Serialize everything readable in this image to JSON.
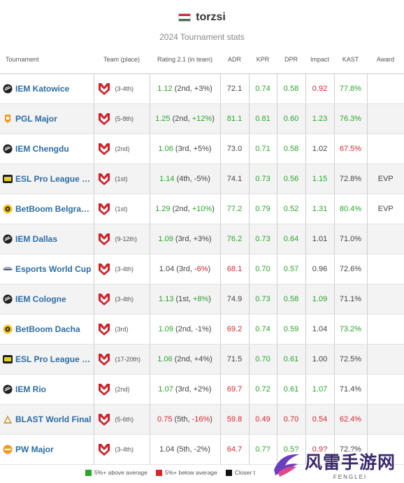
{
  "header": {
    "player": "torzsi",
    "flag_icon": "hungary-flag-icon",
    "subtitle": "2024 Tournament stats"
  },
  "table": {
    "columns": [
      "Tournament",
      "Team (place)",
      "Rating 2.1 (in team)",
      "ADR",
      "KPR",
      "DPR",
      "Impact",
      "KAST",
      "Award"
    ],
    "rows": [
      {
        "tournament": "IEM Katowice",
        "icon": "iem-icon",
        "place": "(3-4th)",
        "rating": "1.12",
        "rating_detail_pre": " (2nd, ",
        "rating_delta": "+3%",
        "rating_delta_class": "n",
        "rating_class": "g",
        "adr": "72.1",
        "adr_class": "n",
        "kpr": "0.74",
        "kpr_class": "g",
        "dpr": "0.58",
        "dpr_class": "g",
        "impact": "0.92",
        "impact_class": "r",
        "kast": "77.8%",
        "kast_class": "g",
        "award": ""
      },
      {
        "tournament": "PGL Major",
        "icon": "pgl-icon",
        "place": "(5-8th)",
        "rating": "1.25",
        "rating_detail_pre": " (2nd, ",
        "rating_delta": "+12%",
        "rating_delta_class": "g",
        "rating_class": "g",
        "adr": "81.1",
        "adr_class": "g",
        "kpr": "0.81",
        "kpr_class": "g",
        "dpr": "0.60",
        "dpr_class": "g",
        "impact": "1.23",
        "impact_class": "g",
        "kast": "76.3%",
        "kast_class": "g",
        "award": ""
      },
      {
        "tournament": "IEM Chengdu",
        "icon": "iem-icon",
        "place": "(2nd)",
        "rating": "1.06",
        "rating_detail_pre": " (3rd, ",
        "rating_delta": "+5%",
        "rating_delta_class": "n",
        "rating_class": "g",
        "adr": "73.0",
        "adr_class": "n",
        "kpr": "0.71",
        "kpr_class": "g",
        "dpr": "0.58",
        "dpr_class": "g",
        "impact": "1.02",
        "impact_class": "n",
        "kast": "67.5%",
        "kast_class": "r",
        "award": ""
      },
      {
        "tournament": "ESL Pro League S…",
        "icon": "esl-pro-league-icon",
        "place": "(1st)",
        "rating": "1.14",
        "rating_detail_pre": " (4th, ",
        "rating_delta": "-5%",
        "rating_delta_class": "n",
        "rating_class": "g",
        "adr": "74.1",
        "adr_class": "n",
        "kpr": "0.73",
        "kpr_class": "g",
        "dpr": "0.56",
        "dpr_class": "g",
        "impact": "1.15",
        "impact_class": "g",
        "kast": "72.8%",
        "kast_class": "n",
        "award": "EVP"
      },
      {
        "tournament": "BetBoom Belgra…",
        "icon": "betboom-icon",
        "place": "(1st)",
        "rating": "1.29",
        "rating_detail_pre": " (2nd, ",
        "rating_delta": "+10%",
        "rating_delta_class": "g",
        "rating_class": "g",
        "adr": "77.2",
        "adr_class": "g",
        "kpr": "0.79",
        "kpr_class": "g",
        "dpr": "0.52",
        "dpr_class": "g",
        "impact": "1.31",
        "impact_class": "g",
        "kast": "80.4%",
        "kast_class": "g",
        "award": "EVP"
      },
      {
        "tournament": "IEM Dallas",
        "icon": "iem-icon",
        "place": "(9-12th)",
        "rating": "1.09",
        "rating_detail_pre": " (3rd, ",
        "rating_delta": "+3%",
        "rating_delta_class": "n",
        "rating_class": "g",
        "adr": "76.2",
        "adr_class": "g",
        "kpr": "0.73",
        "kpr_class": "g",
        "dpr": "0.64",
        "dpr_class": "g",
        "impact": "1.01",
        "impact_class": "n",
        "kast": "71.0%",
        "kast_class": "n",
        "award": ""
      },
      {
        "tournament": "Esports World Cup",
        "icon": "ewc-icon",
        "place": "(3-4th)",
        "rating": "1.04",
        "rating_detail_pre": " (3rd, ",
        "rating_delta": "-6%",
        "rating_delta_class": "r",
        "rating_class": "n",
        "adr": "68.1",
        "adr_class": "r",
        "kpr": "0.70",
        "kpr_class": "g",
        "dpr": "0.57",
        "dpr_class": "g",
        "impact": "0.96",
        "impact_class": "n",
        "kast": "72.6%",
        "kast_class": "n",
        "award": ""
      },
      {
        "tournament": "IEM Cologne",
        "icon": "iem-icon",
        "place": "(3-4th)",
        "rating": "1.13",
        "rating_detail_pre": " (1st, ",
        "rating_delta": "+8%",
        "rating_delta_class": "g",
        "rating_class": "g",
        "adr": "74.9",
        "adr_class": "n",
        "kpr": "0.73",
        "kpr_class": "g",
        "dpr": "0.58",
        "dpr_class": "g",
        "impact": "1.09",
        "impact_class": "g",
        "kast": "71.1%",
        "kast_class": "n",
        "award": ""
      },
      {
        "tournament": "BetBoom Dacha",
        "icon": "betboom-icon",
        "place": "(3rd)",
        "rating": "1.09",
        "rating_detail_pre": " (2nd, ",
        "rating_delta": "-1%",
        "rating_delta_class": "n",
        "rating_class": "g",
        "adr": "69.2",
        "adr_class": "r",
        "kpr": "0.74",
        "kpr_class": "g",
        "dpr": "0.59",
        "dpr_class": "g",
        "impact": "1.04",
        "impact_class": "n",
        "kast": "73.2%",
        "kast_class": "g",
        "award": ""
      },
      {
        "tournament": "ESL Pro League S…",
        "icon": "esl-pro-league-icon",
        "place": "(17-20th)",
        "rating": "1.06",
        "rating_detail_pre": " (2nd, ",
        "rating_delta": "+4%",
        "rating_delta_class": "n",
        "rating_class": "g",
        "adr": "71.5",
        "adr_class": "n",
        "kpr": "0.70",
        "kpr_class": "g",
        "dpr": "0.61",
        "dpr_class": "g",
        "impact": "1.00",
        "impact_class": "n",
        "kast": "72.5%",
        "kast_class": "n",
        "award": ""
      },
      {
        "tournament": "IEM Rio",
        "icon": "iem-icon",
        "place": "(2nd)",
        "rating": "1.07",
        "rating_detail_pre": " (3rd, ",
        "rating_delta": "+2%",
        "rating_delta_class": "n",
        "rating_class": "g",
        "adr": "69.7",
        "adr_class": "r",
        "kpr": "0.72",
        "kpr_class": "g",
        "dpr": "0.61",
        "dpr_class": "g",
        "impact": "1.07",
        "impact_class": "g",
        "kast": "71.4%",
        "kast_class": "n",
        "award": ""
      },
      {
        "tournament": "BLAST World Final",
        "icon": "blast-icon",
        "place": "(5-6th)",
        "rating": "0.75",
        "rating_detail_pre": " (5th, ",
        "rating_delta": "-16%",
        "rating_delta_class": "r",
        "rating_class": "r",
        "adr": "59.8",
        "adr_class": "r",
        "kpr": "0.49",
        "kpr_class": "r",
        "dpr": "0.70",
        "dpr_class": "r",
        "impact": "0.54",
        "impact_class": "r",
        "kast": "62.4%",
        "kast_class": "r",
        "award": ""
      },
      {
        "tournament": "PW Major",
        "icon": "pw-icon",
        "place": "(3-4th)",
        "rating": "1.04",
        "rating_detail_pre": " (5th, ",
        "rating_delta": "-2%",
        "rating_delta_class": "n",
        "rating_class": "n",
        "adr": "64.7",
        "adr_class": "r",
        "kpr": "0.7?",
        "kpr_class": "g",
        "dpr": "0.5?",
        "dpr_class": "g",
        "impact": "0.9?",
        "impact_class": "r",
        "kast": "72.?%",
        "kast_class": "n",
        "award": ""
      }
    ]
  },
  "legend": {
    "above": "5%+ above average",
    "below": "5%+ below average",
    "closer": "Closer t"
  },
  "colors": {
    "green": "#2aa52a",
    "red": "#d9262e",
    "link_blue": "#2d6da3",
    "team_red": "#d0202a"
  },
  "watermark": {
    "cn": "风雷手游网",
    "en": "FENGLEI"
  }
}
